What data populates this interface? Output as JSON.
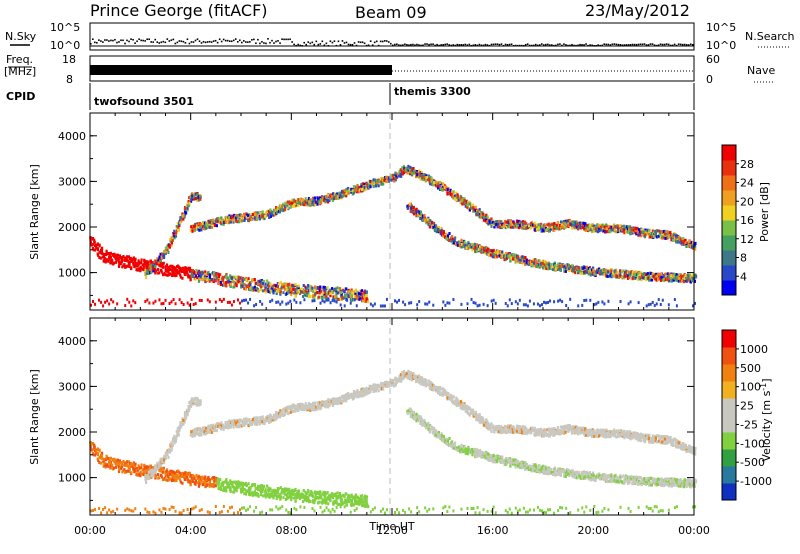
{
  "header": {
    "station": "Prince George (fitACF)",
    "beam": "Beam 09",
    "date": "23/May/2012"
  },
  "status_panels": {
    "nsky": {
      "label": "N.Sky",
      "ticks": [
        "10^5",
        "10^0"
      ],
      "right_label": "N.Search",
      "right_ticks": [
        "10^5",
        "10^0"
      ]
    },
    "freq": {
      "label_top": "Freq.",
      "label_unit": "[MHz]",
      "ticks": [
        "18",
        "8"
      ],
      "right_label": "Nave",
      "right_ticks": [
        "60",
        "0"
      ],
      "freq_mhz_before_12ut": 10,
      "freq_mhz_after_12ut": 10
    },
    "cpid": {
      "label": "CPID",
      "segments": [
        {
          "name": "twofsound 3501",
          "start_ut": 0,
          "end_ut": 12
        },
        {
          "name": "themis 3300",
          "start_ut": 12,
          "end_ut": 24
        }
      ]
    }
  },
  "chart_data": [
    {
      "type": "heatmap",
      "title": "",
      "xlabel": "",
      "ylabel": "Slant Range [km]",
      "xlim_ut_hours": [
        0,
        24
      ],
      "ylim_km": [
        180,
        4500
      ],
      "y_ticks": [
        "1000",
        "2000",
        "3000",
        "4000"
      ],
      "colorbar": {
        "label": "Power [dB]",
        "ticks": [
          "28",
          "24",
          "20",
          "16",
          "12",
          "8",
          "4"
        ],
        "colors": [
          "#0000f0",
          "#2848c8",
          "#3c7888",
          "#44a060",
          "#78c048",
          "#f0d020",
          "#f0a020",
          "#f07018",
          "#e83010",
          "#f00000"
        ]
      },
      "bands": [
        {
          "desc_points_ut_km": [
            [
              0,
              1700
            ],
            [
              0.5,
              1400
            ],
            [
              1,
              1300
            ],
            [
              2,
              1200
            ],
            [
              3,
              1100
            ],
            [
              4,
              1000
            ],
            [
              5,
              900
            ],
            [
              6,
              800
            ],
            [
              8,
              650
            ],
            [
              10,
              560
            ],
            [
              11,
              520
            ]
          ]
        },
        {
          "desc_points_ut_km": [
            [
              2.2,
              1000
            ],
            [
              3,
              1500
            ],
            [
              3.6,
              2200
            ],
            [
              4,
              2700
            ],
            [
              4.4,
              2700
            ]
          ]
        },
        {
          "desc_points_ut_km": [
            [
              4,
              2000
            ],
            [
              5.5,
              2200
            ],
            [
              7,
              2300
            ],
            [
              8,
              2550
            ],
            [
              9,
              2600
            ],
            [
              10,
              2750
            ],
            [
              11,
              2950
            ],
            [
              12,
              3100
            ],
            [
              12.5,
              3300
            ],
            [
              13,
              3200
            ],
            [
              14,
              2900
            ],
            [
              15,
              2500
            ],
            [
              16,
              2100
            ],
            [
              17,
              2100
            ],
            [
              18,
              2000
            ],
            [
              19,
              2100
            ],
            [
              20,
              2000
            ],
            [
              21,
              2000
            ],
            [
              22,
              1900
            ],
            [
              23,
              1850
            ],
            [
              24,
              1600
            ]
          ]
        },
        {
          "desc_points_ut_km": [
            [
              12.6,
              2500
            ],
            [
              13.5,
              2100
            ],
            [
              14.5,
              1700
            ],
            [
              16,
              1450
            ],
            [
              18,
              1200
            ],
            [
              20,
              1050
            ],
            [
              22,
              950
            ],
            [
              24,
              900
            ]
          ]
        }
      ]
    },
    {
      "type": "heatmap",
      "title": "",
      "xlabel": "Time UT",
      "ylabel": "Slant Range [km]",
      "xlim_ut_hours": [
        0,
        24
      ],
      "ylim_km": [
        180,
        4500
      ],
      "x_ticks": [
        "00:00",
        "04:00",
        "08:00",
        "12:00",
        "16:00",
        "20:00",
        "00:00"
      ],
      "y_ticks": [
        "1000",
        "2000",
        "3000",
        "4000"
      ],
      "colorbar": {
        "label": "Velocity [m s",
        "label_sup": "-1",
        "label_close": "]",
        "ticks": [
          "1000",
          "500",
          "100",
          "25",
          "-25",
          "-100",
          "-500",
          "-1000"
        ],
        "colors": [
          "#1030c0",
          "#2878a0",
          "#30a040",
          "#80d040",
          "#c8c8c0",
          "#c8c8c0",
          "#f0b020",
          "#f08010",
          "#f05010",
          "#f00000"
        ]
      }
    }
  ]
}
